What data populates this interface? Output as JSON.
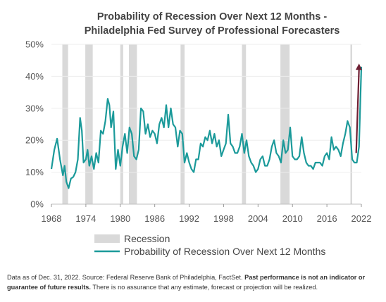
{
  "chart_data": {
    "type": "line",
    "title": [
      "Probability of Recession Over Next 12 Months -",
      "Philadelphia Fed Survey of Professional Forecasters"
    ],
    "xlabel": "",
    "ylabel": "",
    "xlim": [
      1968,
      2022
    ],
    "ylim": [
      0,
      50
    ],
    "x_ticks": [
      "1968",
      "1974",
      "1980",
      "1986",
      "1992",
      "1998",
      "2004",
      "2010",
      "2016",
      "2022"
    ],
    "y_ticks": [
      "0%",
      "10%",
      "20%",
      "30%",
      "40%",
      "50%"
    ],
    "grid": "horizontal",
    "legend": {
      "placement": "bottom-left",
      "items": [
        {
          "label": "Recession",
          "color": "#d9d9d9"
        },
        {
          "label": "Probability of Recession Over Next 12 Months",
          "color": "#1b9a9a"
        }
      ]
    },
    "recessions": [
      [
        1969.9,
        1970.9
      ],
      [
        1973.9,
        1975.2
      ],
      [
        1980.0,
        1980.5
      ],
      [
        1981.5,
        1982.9
      ],
      [
        1990.5,
        1991.2
      ],
      [
        2001.2,
        2001.9
      ],
      [
        2007.9,
        2009.5
      ],
      [
        2020.1,
        2020.4
      ]
    ],
    "series": [
      {
        "name": "Probability of Recession Over Next 12 Months",
        "color": "#1b9a9a",
        "x": [
          1968.0,
          1968.5,
          1969.0,
          1969.5,
          1970.0,
          1970.3,
          1970.6,
          1971.0,
          1971.4,
          1971.8,
          1972.2,
          1972.6,
          1973.0,
          1973.3,
          1973.6,
          1974.0,
          1974.3,
          1974.6,
          1975.0,
          1975.4,
          1975.8,
          1976.2,
          1976.6,
          1977.0,
          1977.4,
          1977.8,
          1978.1,
          1978.4,
          1978.8,
          1979.2,
          1979.6,
          1980.0,
          1980.4,
          1980.8,
          1981.2,
          1981.6,
          1982.0,
          1982.4,
          1982.8,
          1983.2,
          1983.6,
          1984.0,
          1984.4,
          1984.8,
          1985.2,
          1985.6,
          1986.0,
          1986.4,
          1986.8,
          1987.2,
          1987.6,
          1988.0,
          1988.4,
          1988.8,
          1989.2,
          1989.6,
          1990.0,
          1990.4,
          1990.8,
          1991.2,
          1991.6,
          1992.0,
          1992.4,
          1992.8,
          1993.2,
          1993.6,
          1994.0,
          1994.4,
          1994.8,
          1995.2,
          1995.6,
          1996.0,
          1996.4,
          1996.8,
          1997.2,
          1997.6,
          1998.0,
          1998.4,
          1998.8,
          1999.2,
          1999.6,
          2000.0,
          2000.4,
          2000.8,
          2001.2,
          2001.6,
          2002.0,
          2002.4,
          2002.8,
          2003.2,
          2003.6,
          2004.0,
          2004.4,
          2004.8,
          2005.2,
          2005.6,
          2006.0,
          2006.4,
          2006.8,
          2007.2,
          2007.6,
          2008.0,
          2008.4,
          2008.8,
          2009.2,
          2009.6,
          2010.0,
          2010.4,
          2010.8,
          2011.2,
          2011.6,
          2012.0,
          2012.4,
          2012.8,
          2013.2,
          2013.6,
          2014.0,
          2014.4,
          2014.8,
          2015.2,
          2015.6,
          2016.0,
          2016.4,
          2016.8,
          2017.2,
          2017.6,
          2018.0,
          2018.4,
          2018.8,
          2019.2,
          2019.6,
          2020.0,
          2020.4,
          2020.8,
          2021.2,
          2021.6,
          2022.0
        ],
        "values": [
          11,
          17,
          20.5,
          14,
          9,
          12,
          7,
          5,
          8,
          8.5,
          10,
          14,
          27,
          23,
          13,
          14,
          17,
          12,
          15,
          11,
          16,
          13,
          23,
          22,
          26,
          33,
          31,
          24,
          29,
          11,
          17,
          12,
          18,
          22,
          16,
          24,
          22,
          15,
          14,
          17,
          30,
          29,
          22,
          25,
          21,
          23,
          22,
          19,
          25,
          27,
          24,
          31,
          24,
          30,
          25,
          24,
          18,
          23,
          22,
          13,
          16,
          13,
          11,
          10,
          14,
          14,
          19,
          18,
          21,
          20,
          23,
          19,
          22,
          18,
          20,
          15,
          17,
          19,
          28,
          19,
          18,
          16,
          16,
          18,
          22,
          16,
          20,
          15,
          13,
          12,
          10,
          11,
          14,
          15,
          12,
          12,
          14,
          18,
          20,
          16,
          15,
          13,
          20,
          16,
          17,
          24,
          15,
          14,
          14,
          15,
          21,
          16,
          13,
          12,
          12,
          11,
          13,
          13,
          13,
          12,
          15,
          16,
          14,
          21,
          17,
          18,
          17,
          15,
          19,
          22,
          26,
          24,
          14,
          13,
          13,
          18,
          43
        ]
      }
    ],
    "annotations": [
      {
        "type": "arrow",
        "color": "#6e1f33",
        "from": [
          2021.1,
          16
        ],
        "to": [
          2021.6,
          44
        ]
      }
    ]
  },
  "footnote": {
    "plain": "Data as of Dec. 31, 2022. Source: Federal Reserve Bank of Philadelphia, FactSet. ",
    "bold": "Past performance is not an indicator or guarantee of future results.",
    "tail": " There is no assurance that any estimate, forecast or projection will be realized."
  }
}
